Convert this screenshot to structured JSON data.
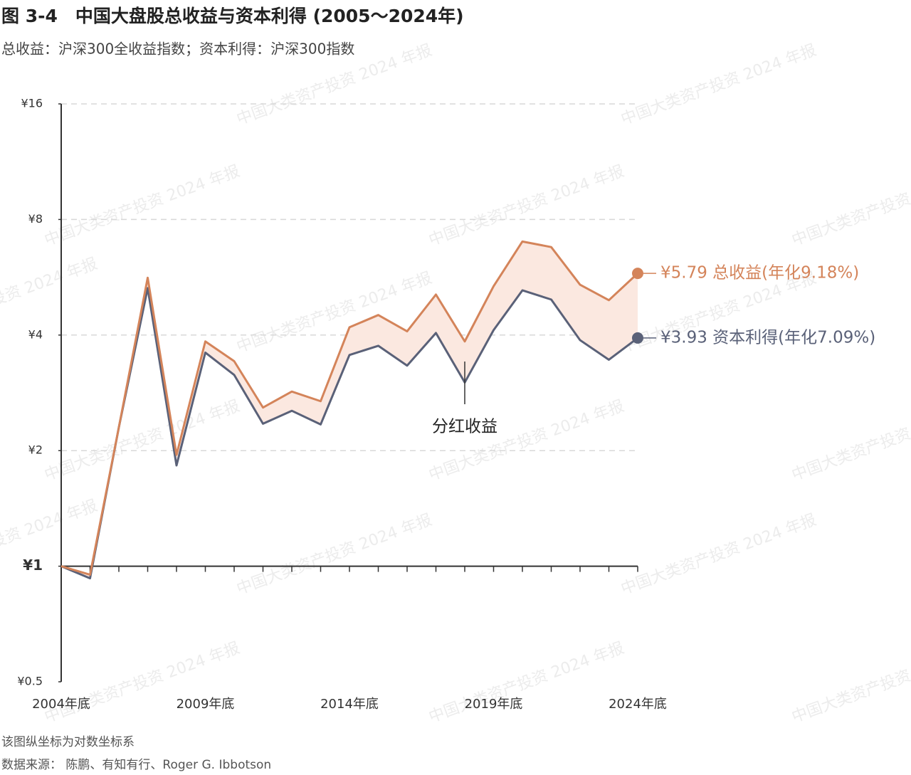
{
  "chart_data": {
    "type": "line",
    "title": "图 3-4　中国大盘股总收益与资本利得 (2005～2024年)",
    "subtitle": "总收益：沪深300全收益指数；资本利得：沪深300指数",
    "log_scale": true,
    "grid": true,
    "x": [
      2004,
      2005,
      2006,
      2007,
      2008,
      2009,
      2010,
      2011,
      2012,
      2013,
      2014,
      2015,
      2016,
      2017,
      2018,
      2019,
      2020,
      2021,
      2022,
      2023,
      2024
    ],
    "xlim": [
      2004,
      2024
    ],
    "xticks": [
      {
        "value": 2004,
        "label": "2004年底"
      },
      {
        "value": 2009,
        "label": "2009年底"
      },
      {
        "value": 2014,
        "label": "2014年底"
      },
      {
        "value": 2019,
        "label": "2019年底"
      },
      {
        "value": 2024,
        "label": "2024年底"
      }
    ],
    "ylim": [
      0.5,
      16
    ],
    "yticks": [
      {
        "value": 0.5,
        "label": "¥0.5"
      },
      {
        "value": 1,
        "label": "¥1"
      },
      {
        "value": 2,
        "label": "¥2"
      },
      {
        "value": 4,
        "label": "¥4"
      },
      {
        "value": 8,
        "label": "¥8"
      },
      {
        "value": 16,
        "label": "¥16"
      }
    ],
    "series": [
      {
        "name": "总收益",
        "color": "#d4845a",
        "end_label": "¥5.79 总收益(年化9.18%)",
        "values": [
          1,
          0.95,
          2.3,
          5.64,
          1.95,
          3.85,
          3.42,
          2.59,
          2.85,
          2.69,
          4.19,
          4.51,
          4.09,
          5.1,
          3.85,
          5.36,
          7.01,
          6.78,
          5.41,
          4.93,
          5.79
        ]
      },
      {
        "name": "资本利得",
        "color": "#5a6178",
        "end_label": "¥3.93 资本利得(年化7.09%)",
        "values": [
          1,
          0.93,
          2.3,
          5.3,
          1.83,
          3.6,
          3.15,
          2.35,
          2.54,
          2.34,
          3.55,
          3.75,
          3.33,
          4.05,
          3.01,
          4.12,
          5.23,
          4.95,
          3.88,
          3.45,
          3.93
        ]
      }
    ],
    "annotation": "分红收益",
    "watermark": "中国大类资产投资 2024 年报",
    "notes": [
      "该图纵坐标为对数坐标系",
      "数据来源：  陈鹏、有知有行、Roger G. Ibbotson"
    ]
  }
}
